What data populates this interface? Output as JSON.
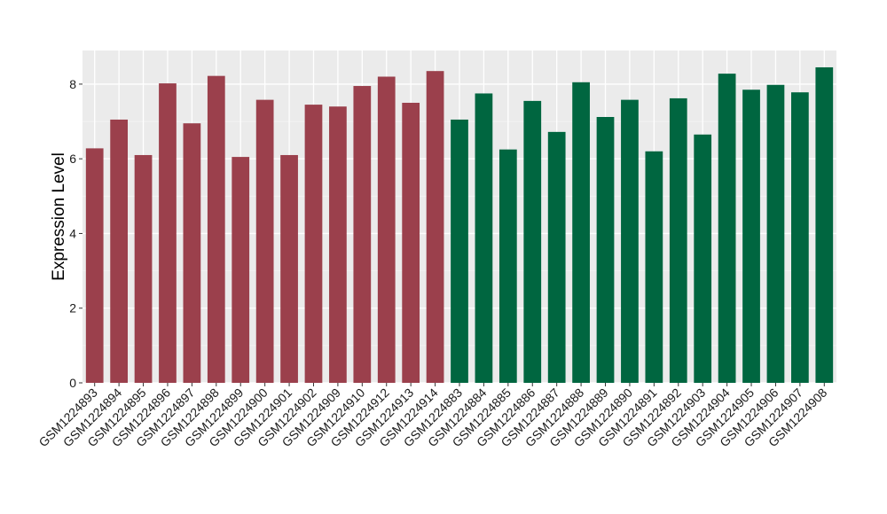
{
  "chart_data": {
    "type": "bar",
    "title": "",
    "xlabel": "",
    "ylabel": "Expression Level",
    "ylim": [
      0,
      8.9
    ],
    "y_ticks": [
      "0",
      "2",
      "4",
      "6",
      "8"
    ],
    "grid": true,
    "legend": "none",
    "categories": [
      "GSM1224893",
      "GSM1224894",
      "GSM1224895",
      "GSM1224896",
      "GSM1224897",
      "GSM1224898",
      "GSM1224899",
      "GSM1224900",
      "GSM1224901",
      "GSM1224902",
      "GSM1224909",
      "GSM1224910",
      "GSM1224912",
      "GSM1224913",
      "GSM1224914",
      "GSM1224883",
      "GSM1224884",
      "GSM1224885",
      "GSM1224886",
      "GSM1224887",
      "GSM1224888",
      "GSM1224889",
      "GSM1224890",
      "GSM1224891",
      "GSM1224892",
      "GSM1224903",
      "GSM1224904",
      "GSM1224905",
      "GSM1224906",
      "GSM1224907",
      "GSM1224908"
    ],
    "values": [
      6.28,
      7.05,
      6.1,
      8.02,
      6.95,
      8.22,
      6.05,
      7.58,
      6.1,
      7.45,
      7.4,
      7.95,
      8.2,
      7.5,
      8.35,
      7.05,
      7.75,
      6.25,
      7.55,
      6.72,
      8.05,
      7.12,
      7.58,
      6.2,
      7.62,
      6.65,
      8.28,
      7.85,
      7.98,
      7.78,
      8.45
    ],
    "groups": [
      0,
      0,
      0,
      0,
      0,
      0,
      0,
      0,
      0,
      0,
      0,
      0,
      0,
      0,
      0,
      1,
      1,
      1,
      1,
      1,
      1,
      1,
      1,
      1,
      1,
      1,
      1,
      1,
      1,
      1,
      1
    ],
    "colors": {
      "group_0": "#9b404c",
      "group_1": "#006640",
      "panel_background": "#ebebeb",
      "grid_major": "#ffffff",
      "grid_minor": "#f5f5f5"
    }
  }
}
